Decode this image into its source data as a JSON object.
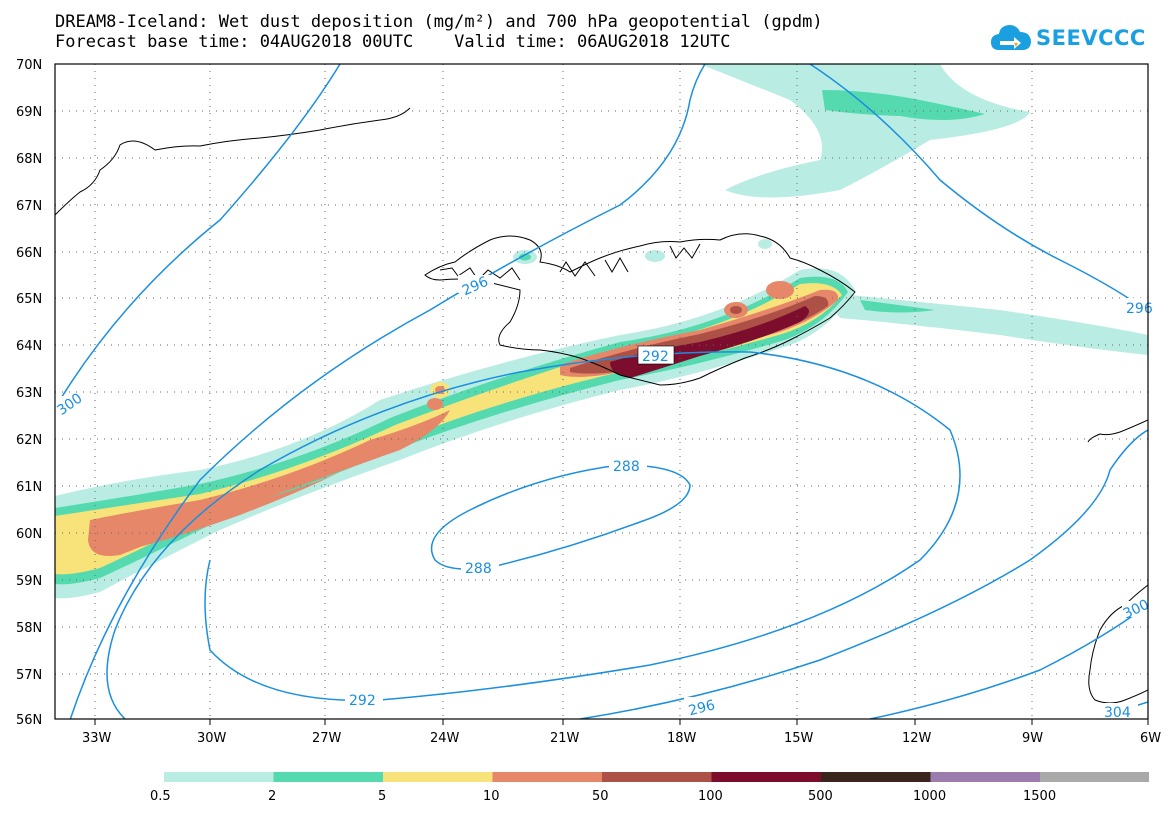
{
  "header": {
    "title_line1": "DREAM8-Iceland: Wet dust deposition (mg/m²) and 700 hPa geopotential (gpdm)",
    "title_line2": "Forecast base time: 04AUG2018 00UTC    Valid time: 06AUG2018 12UTC"
  },
  "logo": {
    "text": "SEEVCCC",
    "icon": "cloud-icon",
    "color": "#1a9fe0"
  },
  "map": {
    "lat_labels": [
      "70N",
      "69N",
      "68N",
      "67N",
      "66N",
      "65N",
      "64N",
      "63N",
      "62N",
      "61N",
      "60N",
      "59N",
      "58N",
      "57N",
      "56N"
    ],
    "lon_labels": [
      "33W",
      "30W",
      "27W",
      "24W",
      "21W",
      "18W",
      "15W",
      "12W",
      "9W",
      "6W"
    ],
    "contour_color": "#1a8fe0",
    "contour_labels": [
      "296",
      "292",
      "288",
      "288",
      "292",
      "296",
      "300",
      "300",
      "296",
      "304"
    ]
  },
  "legend": {
    "colors": [
      "#b9ede3",
      "#55d9ae",
      "#f7e37a",
      "#e6876a",
      "#ad5147",
      "#7c0d2c",
      "#3a241d",
      "#9b7cad",
      "#a9a9a9"
    ],
    "labels": [
      "0.5",
      "2",
      "5",
      "10",
      "50",
      "100",
      "500",
      "1000",
      "1500"
    ]
  }
}
